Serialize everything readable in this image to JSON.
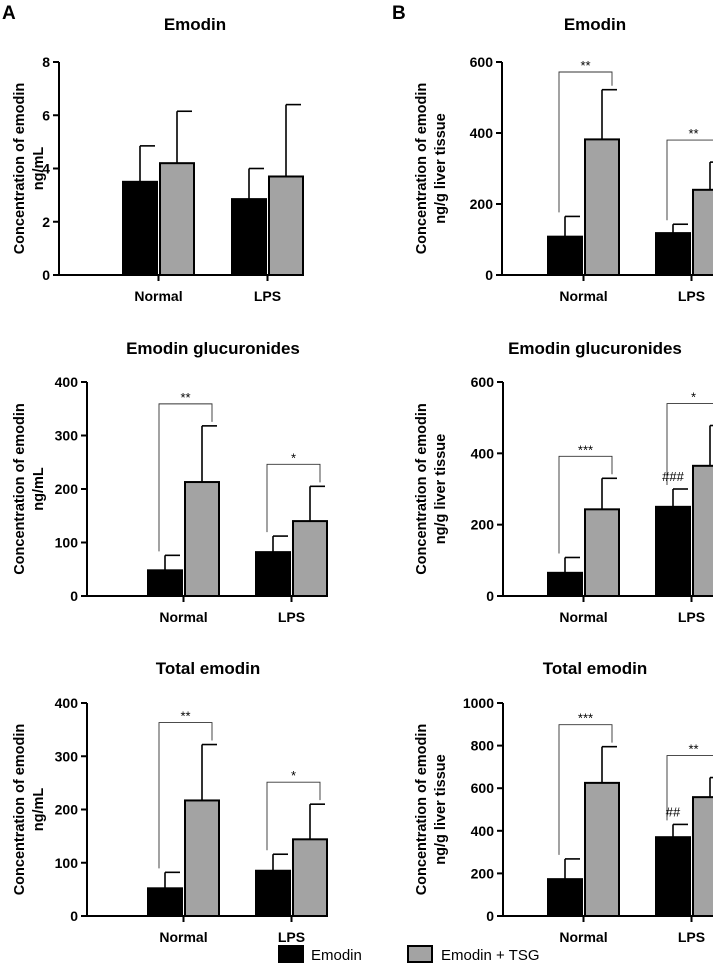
{
  "panels": {
    "a": "A",
    "b": "B"
  },
  "legend": {
    "items": [
      {
        "label": "Emodin",
        "color": "#000000"
      },
      {
        "label": "Emodin + TSG",
        "color": "#a3a3a3"
      }
    ]
  },
  "chart_data": [
    {
      "type": "bar",
      "panel": "A",
      "title": "Emodin",
      "ylabel": [
        "Concentration of emodin",
        "ng/mL"
      ],
      "ylim": [
        0,
        8
      ],
      "yticks": [
        0,
        2,
        4,
        6,
        8
      ],
      "categories": [
        "Normal",
        "LPS"
      ],
      "series": [
        {
          "name": "Emodin",
          "values": [
            3.5,
            2.85
          ],
          "errors": [
            1.35,
            1.15
          ]
        },
        {
          "name": "Emodin + TSG",
          "values": [
            4.2,
            3.7
          ],
          "errors": [
            1.95,
            2.7
          ]
        }
      ],
      "annotations": []
    },
    {
      "type": "bar",
      "panel": "B",
      "title": "Emodin",
      "ylabel": [
        "Concentration of emodin",
        "ng/g liver tissue"
      ],
      "ylim": [
        0,
        600
      ],
      "yticks": [
        0,
        200,
        400,
        600
      ],
      "categories": [
        "Normal",
        "LPS"
      ],
      "series": [
        {
          "name": "Emodin",
          "values": [
            108,
            118
          ],
          "errors": [
            57,
            25
          ]
        },
        {
          "name": "Emodin + TSG",
          "values": [
            382,
            240
          ],
          "errors": [
            140,
            78
          ]
        }
      ],
      "annotations": [
        {
          "type": "bracket",
          "category": 0,
          "text": "**"
        },
        {
          "type": "bracket",
          "category": 1,
          "text": "**"
        }
      ]
    },
    {
      "type": "bar",
      "panel": "A",
      "title": "Emodin glucuronides",
      "ylabel": [
        "Concentration of emodin",
        "ng/mL"
      ],
      "ylim": [
        0,
        400
      ],
      "yticks": [
        0,
        100,
        200,
        300,
        400
      ],
      "categories": [
        "Normal",
        "LPS"
      ],
      "series": [
        {
          "name": "Emodin",
          "values": [
            48,
            82
          ],
          "errors": [
            28,
            30
          ]
        },
        {
          "name": "Emodin + TSG",
          "values": [
            213,
            140
          ],
          "errors": [
            105,
            65
          ]
        }
      ],
      "annotations": [
        {
          "type": "bracket",
          "category": 0,
          "text": "**"
        },
        {
          "type": "bracket",
          "category": 1,
          "text": "*"
        }
      ]
    },
    {
      "type": "bar",
      "panel": "B",
      "title": "Emodin glucuronides",
      "ylabel": [
        "Concentration of emodin",
        "ng/g liver tissue"
      ],
      "ylim": [
        0,
        600
      ],
      "yticks": [
        0,
        200,
        400,
        600
      ],
      "categories": [
        "Normal",
        "LPS"
      ],
      "series": [
        {
          "name": "Emodin",
          "values": [
            65,
            250
          ],
          "errors": [
            43,
            50
          ]
        },
        {
          "name": "Emodin + TSG",
          "values": [
            243,
            365
          ],
          "errors": [
            87,
            113
          ]
        }
      ],
      "annotations": [
        {
          "type": "bracket",
          "category": 0,
          "text": "***"
        },
        {
          "type": "bracket",
          "category": 1,
          "text": "*"
        },
        {
          "type": "mark",
          "category": 1,
          "series": 0,
          "text": "###"
        }
      ]
    },
    {
      "type": "bar",
      "panel": "A",
      "title": "Total emodin",
      "ylabel": [
        "Concentration of emodin",
        "ng/mL"
      ],
      "ylim": [
        0,
        400
      ],
      "yticks": [
        0,
        100,
        200,
        300,
        400
      ],
      "categories": [
        "Normal",
        "LPS"
      ],
      "series": [
        {
          "name": "Emodin",
          "values": [
            52,
            85
          ],
          "errors": [
            30,
            31
          ]
        },
        {
          "name": "Emodin + TSG",
          "values": [
            217,
            144
          ],
          "errors": [
            105,
            66
          ]
        }
      ],
      "annotations": [
        {
          "type": "bracket",
          "category": 0,
          "text": "**"
        },
        {
          "type": "bracket",
          "category": 1,
          "text": "*"
        }
      ]
    },
    {
      "type": "bar",
      "panel": "B",
      "title": "Total emodin",
      "ylabel": [
        "Concentration of emodin",
        "ng/g liver tissue"
      ],
      "ylim": [
        0,
        1000
      ],
      "yticks": [
        0,
        200,
        400,
        600,
        800,
        1000
      ],
      "categories": [
        "Normal",
        "LPS"
      ],
      "series": [
        {
          "name": "Emodin",
          "values": [
            173,
            370
          ],
          "errors": [
            95,
            60
          ]
        },
        {
          "name": "Emodin + TSG",
          "values": [
            625,
            558
          ],
          "errors": [
            170,
            92
          ]
        }
      ],
      "annotations": [
        {
          "type": "bracket",
          "category": 0,
          "text": "***"
        },
        {
          "type": "bracket",
          "category": 1,
          "text": "**"
        },
        {
          "type": "mark",
          "category": 1,
          "series": 0,
          "text": "##"
        }
      ]
    }
  ]
}
